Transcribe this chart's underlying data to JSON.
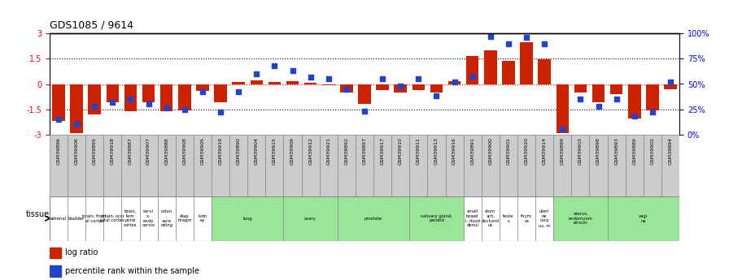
{
  "title": "GDS1085 / 9614",
  "samples": [
    "GSM39896",
    "GSM39906",
    "GSM39895",
    "GSM39918",
    "GSM39887",
    "GSM39907",
    "GSM39888",
    "GSM39908",
    "GSM39905",
    "GSM39919",
    "GSM39890",
    "GSM39904",
    "GSM39915",
    "GSM39909",
    "GSM39912",
    "GSM39921",
    "GSM39892",
    "GSM39897",
    "GSM39917",
    "GSM39910",
    "GSM39911",
    "GSM39913",
    "GSM39916",
    "GSM39891",
    "GSM39900",
    "GSM39901",
    "GSM39920",
    "GSM39914",
    "GSM39899",
    "GSM39903",
    "GSM39898",
    "GSM39893",
    "GSM39889",
    "GSM39902",
    "GSM39894"
  ],
  "log_ratio": [
    -2.2,
    -2.9,
    -1.8,
    -1.1,
    -1.6,
    -1.1,
    -1.6,
    -1.55,
    -0.4,
    -1.1,
    0.1,
    0.2,
    0.1,
    0.15,
    0.08,
    -0.05,
    -0.5,
    -1.2,
    -0.35,
    -0.5,
    -0.35,
    -0.5,
    0.15,
    1.65,
    2.0,
    1.4,
    2.5,
    1.45,
    -2.9,
    -0.5,
    -1.1,
    -0.6,
    -2.05,
    -1.55,
    -0.3
  ],
  "pct_rank": [
    15,
    10,
    28,
    32,
    35,
    30,
    26,
    25,
    42,
    22,
    42,
    60,
    68,
    63,
    57,
    55,
    45,
    23,
    55,
    48,
    55,
    38,
    52,
    58,
    97,
    90,
    96,
    90,
    5,
    35,
    28,
    35,
    18,
    22,
    52
  ],
  "tissues": [
    {
      "label": "adrenal",
      "start": 0,
      "end": 1,
      "green": false
    },
    {
      "label": "bladder",
      "start": 1,
      "end": 2,
      "green": false
    },
    {
      "label": "brain, front\nal cortex",
      "start": 2,
      "end": 3,
      "green": false
    },
    {
      "label": "brain, occi\npital cortex",
      "start": 3,
      "end": 4,
      "green": false
    },
    {
      "label": "brain,\ntem\nporal\ncortex",
      "start": 4,
      "end": 5,
      "green": false
    },
    {
      "label": "cervi\nx,\nendo\ncervix",
      "start": 5,
      "end": 6,
      "green": false
    },
    {
      "label": "colon\n,\nasce\nnding",
      "start": 6,
      "end": 7,
      "green": false
    },
    {
      "label": "diap\nhragm",
      "start": 7,
      "end": 8,
      "green": false
    },
    {
      "label": "kidn\ney",
      "start": 8,
      "end": 9,
      "green": false
    },
    {
      "label": "lung",
      "start": 9,
      "end": 13,
      "green": true
    },
    {
      "label": "ovary",
      "start": 13,
      "end": 16,
      "green": true
    },
    {
      "label": "prostate",
      "start": 16,
      "end": 20,
      "green": true
    },
    {
      "label": "salivary gland,\nparotid",
      "start": 20,
      "end": 23,
      "green": true
    },
    {
      "label": "small\nbowel\nI, duod\ndenui",
      "start": 23,
      "end": 24,
      "green": false
    },
    {
      "label": "stom\nach,\nductund\nus",
      "start": 24,
      "end": 25,
      "green": false
    },
    {
      "label": "teste\ns",
      "start": 25,
      "end": 26,
      "green": false
    },
    {
      "label": "thym\nus",
      "start": 26,
      "end": 27,
      "green": false
    },
    {
      "label": "uteri\nne\ncorp\nus, m",
      "start": 27,
      "end": 28,
      "green": false
    },
    {
      "label": "uterus,\nendomyom\netrium",
      "start": 28,
      "end": 31,
      "green": true
    },
    {
      "label": "vagi\nna",
      "start": 31,
      "end": 35,
      "green": true
    }
  ],
  "bar_color": "#cc2200",
  "dot_color": "#2244cc",
  "ylim": [
    -3,
    3
  ],
  "y2lim": [
    0,
    100
  ],
  "yticks": [
    -3,
    -1.5,
    0,
    1.5,
    3
  ],
  "y2ticks": [
    0,
    25,
    50,
    75,
    100
  ],
  "hlines": [
    -1.5,
    0,
    1.5
  ],
  "bar_width": 0.7,
  "dot_size": 25,
  "tissue_green": "#99e699",
  "tissue_gray": "#cccccc",
  "sample_box_color": "#cccccc"
}
